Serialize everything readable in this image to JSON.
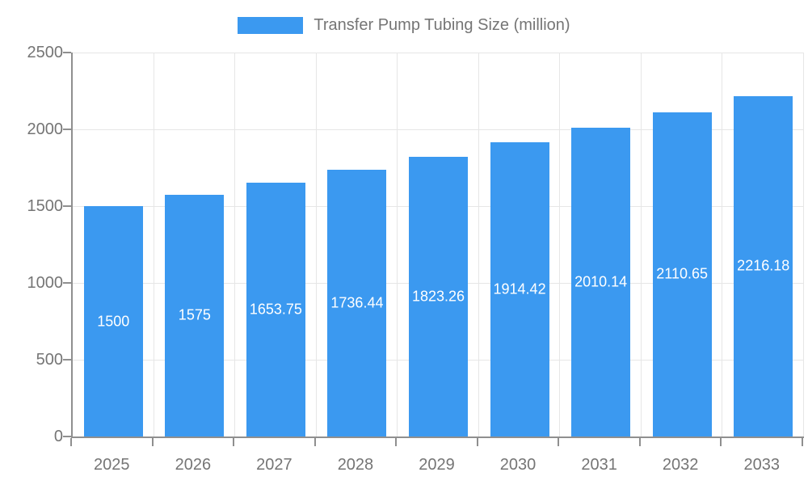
{
  "chart_data": {
    "type": "bar",
    "title": "",
    "series_name": "Transfer Pump Tubing Size (million)",
    "categories": [
      "2025",
      "2026",
      "2027",
      "2028",
      "2029",
      "2030",
      "2031",
      "2032",
      "2033"
    ],
    "values": [
      1500,
      1575,
      1653.75,
      1736.44,
      1823.26,
      1914.42,
      2010.14,
      2110.65,
      2216.18
    ],
    "bar_labels": [
      "1500",
      "1575",
      "1653.75",
      "1736.44",
      "1823.26",
      "1914.42",
      "2010.14",
      "2110.65",
      "2216.18"
    ],
    "xlabel": "",
    "ylabel": "",
    "ylim": [
      0,
      2500
    ],
    "yticks": [
      0,
      500,
      1000,
      1500,
      2000,
      2500
    ],
    "grid": true,
    "legend_position": "top"
  },
  "colors": {
    "bar": "#3b99f0",
    "bar_label_text": "#ffffff",
    "axis_text": "#757575",
    "gridline": "#e6e6e6",
    "axis_line": "#8f8f8f"
  }
}
